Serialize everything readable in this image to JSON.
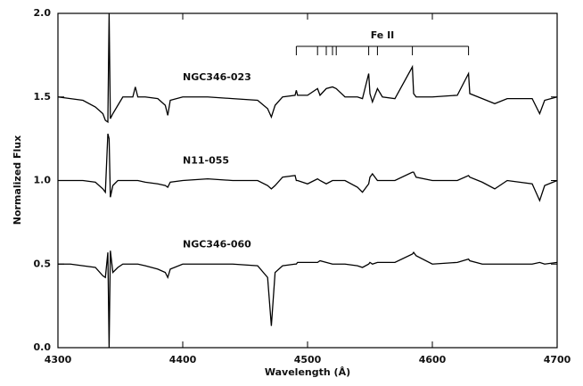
{
  "chart_data": {
    "type": "line",
    "xlabel": "Wavelength (Å)",
    "ylabel": "Normalized Flux",
    "x": [
      4300,
      4310,
      4320,
      4330,
      4336,
      4338,
      4340,
      4341,
      4342,
      4344,
      4348,
      4352,
      4360,
      4362,
      4364,
      4370,
      4380,
      4386,
      4388,
      4390,
      4400,
      4420,
      4440,
      4460,
      4468,
      4471,
      4474,
      4480,
      4490,
      4491,
      4492,
      4500,
      4508,
      4510,
      4515,
      4520,
      4523,
      4530,
      4540,
      4544,
      4549,
      4550,
      4552,
      4556,
      4560,
      4570,
      4584,
      4585,
      4587,
      4600,
      4620,
      4629,
      4630,
      4640,
      4650,
      4660,
      4680,
      4686,
      4690,
      4700
    ],
    "series": [
      {
        "name": "NGC346-023",
        "color": "#000000",
        "values": [
          1.5,
          1.49,
          1.48,
          1.44,
          1.4,
          1.36,
          1.35,
          2.0,
          1.37,
          1.4,
          1.45,
          1.5,
          1.5,
          1.56,
          1.5,
          1.5,
          1.49,
          1.45,
          1.39,
          1.48,
          1.5,
          1.5,
          1.49,
          1.48,
          1.43,
          1.38,
          1.45,
          1.5,
          1.51,
          1.54,
          1.51,
          1.51,
          1.55,
          1.51,
          1.55,
          1.56,
          1.55,
          1.5,
          1.5,
          1.49,
          1.64,
          1.52,
          1.47,
          1.55,
          1.5,
          1.49,
          1.68,
          1.52,
          1.5,
          1.5,
          1.51,
          1.64,
          1.52,
          1.49,
          1.46,
          1.49,
          1.49,
          1.4,
          1.48,
          1.5
        ]
      },
      {
        "name": "N11-055",
        "color": "#000000",
        "values": [
          1.0,
          1.0,
          1.0,
          0.99,
          0.95,
          0.93,
          1.28,
          1.25,
          0.9,
          0.97,
          1.0,
          1.0,
          1.0,
          1.0,
          1.0,
          0.99,
          0.98,
          0.97,
          0.96,
          0.99,
          1.0,
          1.01,
          1.0,
          1.0,
          0.97,
          0.95,
          0.97,
          1.02,
          1.03,
          1.0,
          1.0,
          0.98,
          1.01,
          1.0,
          0.98,
          1.0,
          1.0,
          1.0,
          0.96,
          0.93,
          0.98,
          1.02,
          1.04,
          1.0,
          1.0,
          1.0,
          1.05,
          1.05,
          1.02,
          1.0,
          1.0,
          1.03,
          1.02,
          0.99,
          0.95,
          1.0,
          0.98,
          0.88,
          0.97,
          1.0
        ]
      },
      {
        "name": "NGC346-060",
        "color": "#000000",
        "values": [
          0.5,
          0.5,
          0.49,
          0.48,
          0.43,
          0.42,
          0.57,
          0.0,
          0.58,
          0.45,
          0.48,
          0.5,
          0.5,
          0.5,
          0.5,
          0.49,
          0.47,
          0.45,
          0.42,
          0.47,
          0.5,
          0.5,
          0.5,
          0.49,
          0.42,
          0.13,
          0.45,
          0.49,
          0.5,
          0.5,
          0.51,
          0.51,
          0.51,
          0.52,
          0.51,
          0.5,
          0.5,
          0.5,
          0.49,
          0.48,
          0.5,
          0.51,
          0.5,
          0.51,
          0.51,
          0.51,
          0.56,
          0.57,
          0.55,
          0.5,
          0.51,
          0.53,
          0.52,
          0.5,
          0.5,
          0.5,
          0.5,
          0.51,
          0.5,
          0.51
        ]
      }
    ],
    "annotation": {
      "text": "Fe II",
      "lines": [
        4491,
        4508,
        4515,
        4520,
        4523,
        4549,
        4556,
        4584,
        4629
      ]
    },
    "xlim": [
      4300,
      4700
    ],
    "xticks": [
      4300,
      4400,
      4500,
      4600,
      4700
    ],
    "ylim": [
      0,
      2
    ],
    "yticks": [
      {
        "value": 0,
        "label": "0.0"
      },
      0.5,
      {
        "value": 1,
        "label": "1.0"
      },
      1.5,
      {
        "value": 2,
        "label": "2.0"
      }
    ]
  }
}
